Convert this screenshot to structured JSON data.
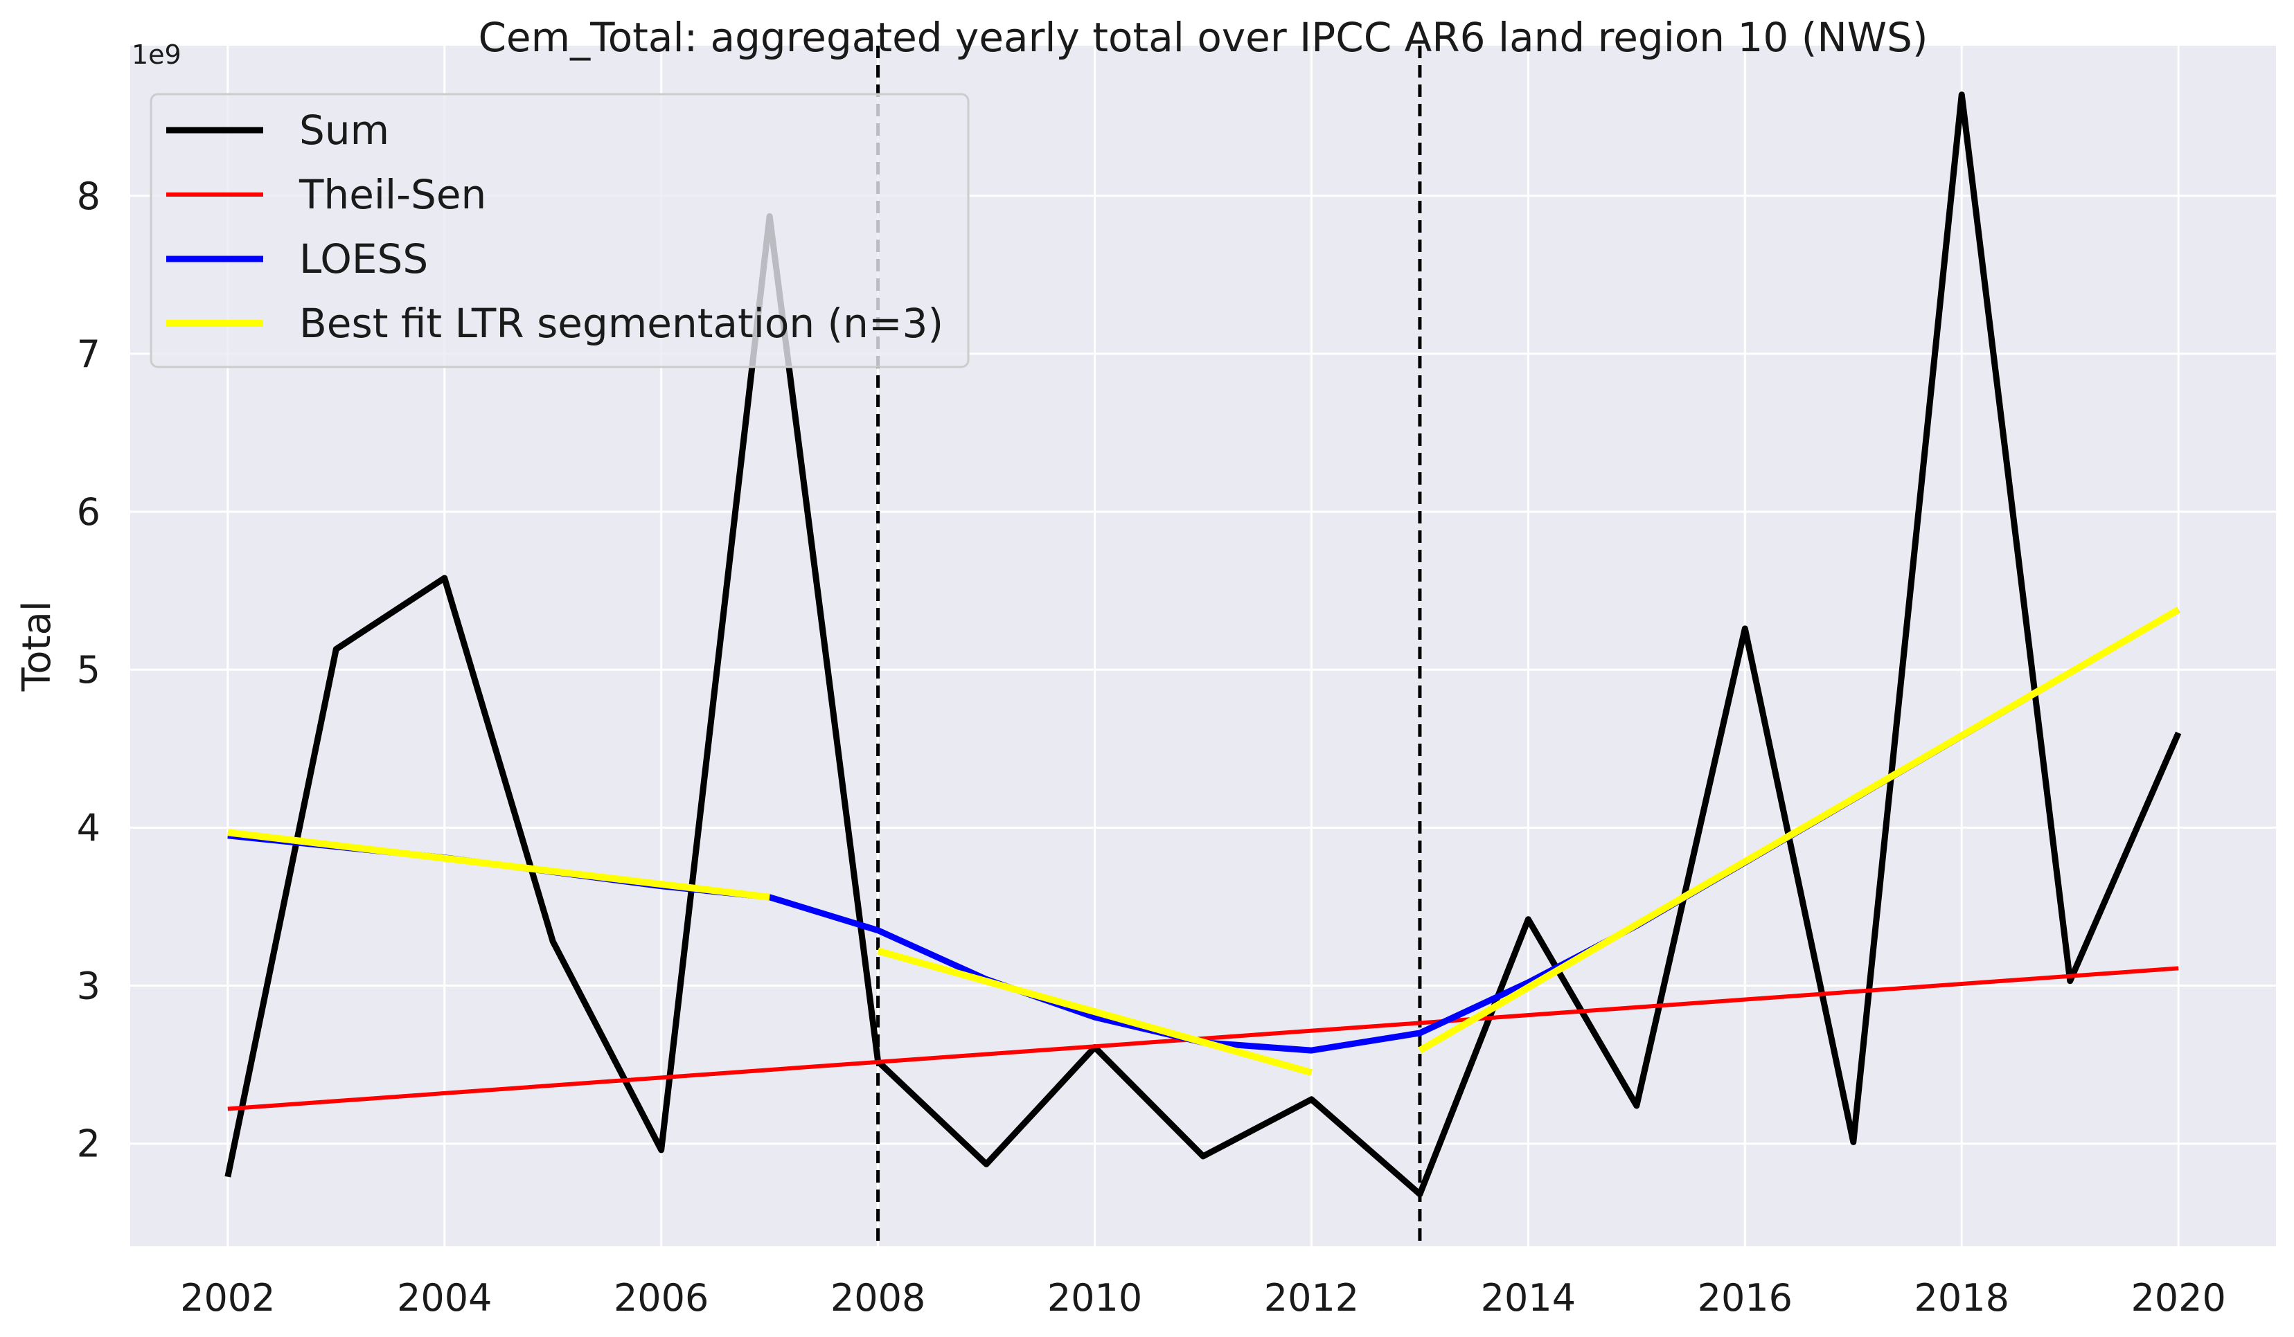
{
  "chart_data": {
    "type": "line",
    "title": "Cem_Total: aggregated yearly total over IPCC AR6 land region 10 (NWS)",
    "xlabel": "",
    "ylabel": "Total",
    "y_offset_label": "1e9",
    "xlim": [
      2001.1,
      2020.9
    ],
    "ylim": [
      1.35,
      8.95
    ],
    "x_ticks": [
      2002,
      2004,
      2006,
      2008,
      2010,
      2012,
      2014,
      2016,
      2018,
      2020
    ],
    "x_tick_labels": [
      "2002",
      "2004",
      "2006",
      "2008",
      "2010",
      "2012",
      "2014",
      "2016",
      "2018",
      "2020"
    ],
    "y_ticks": [
      2,
      3,
      4,
      5,
      6,
      7,
      8
    ],
    "y_tick_labels": [
      "2",
      "3",
      "4",
      "5",
      "6",
      "7",
      "8"
    ],
    "grid": true,
    "legend_position": "top-left",
    "vertical_lines": [
      2008,
      2013
    ],
    "series": [
      {
        "name": "Sum",
        "color": "#000000",
        "x": [
          2002,
          2003,
          2004,
          2005,
          2006,
          2007,
          2008,
          2009,
          2010,
          2011,
          2012,
          2013,
          2014,
          2015,
          2016,
          2017,
          2018,
          2019,
          2020
        ],
        "y": [
          1.79,
          5.13,
          5.58,
          3.28,
          1.96,
          7.87,
          2.52,
          1.87,
          2.61,
          1.92,
          2.28,
          1.68,
          3.42,
          2.24,
          5.26,
          2.01,
          8.64,
          3.03,
          4.6
        ]
      },
      {
        "name": "Theil-Sen",
        "color": "#ff0000",
        "x": [
          2002,
          2020
        ],
        "y": [
          2.22,
          3.11
        ]
      },
      {
        "name": "LOESS",
        "color": "#0000ff",
        "x": [
          2002,
          2003,
          2004,
          2005,
          2006,
          2007,
          2008,
          2009,
          2010,
          2011,
          2012,
          2013,
          2014,
          2015,
          2016,
          2017,
          2018,
          2019,
          2020
        ],
        "y": [
          3.95,
          3.88,
          3.81,
          3.72,
          3.63,
          3.56,
          3.35,
          3.04,
          2.8,
          2.64,
          2.59,
          2.7,
          3.02,
          3.38,
          3.78,
          4.18,
          4.58,
          4.98,
          5.38
        ]
      },
      {
        "name": "Best fit LTR segmentation (n=3)",
        "color": "#ffff00",
        "segments": [
          {
            "x": [
              2002,
              2007
            ],
            "y": [
              3.97,
              3.56
            ]
          },
          {
            "x": [
              2008,
              2012
            ],
            "y": [
              3.22,
              2.45
            ]
          },
          {
            "x": [
              2013,
              2020
            ],
            "y": [
              2.59,
              5.38
            ]
          }
        ]
      }
    ]
  }
}
